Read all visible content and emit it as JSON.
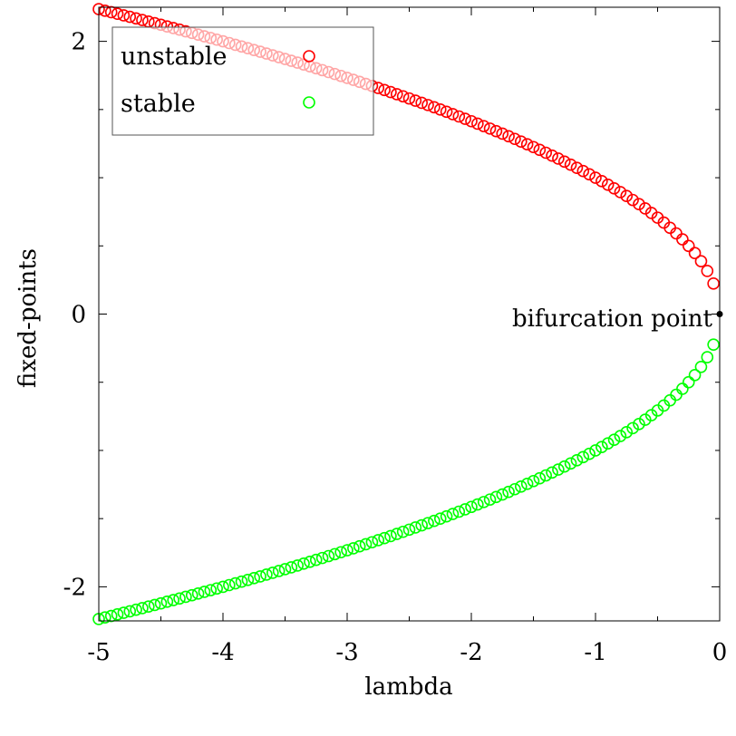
{
  "chart_data": {
    "type": "scatter",
    "title": "",
    "xlabel": "lambda",
    "ylabel": "fixed-points",
    "xlim": [
      -5,
      0
    ],
    "ylim": [
      -2.25,
      2.25
    ],
    "x_ticks": [
      -5,
      -4,
      -3,
      -2,
      -1,
      0
    ],
    "x_tick_labels": [
      "-5",
      "-4",
      "-3",
      "-2",
      "-1",
      "0"
    ],
    "y_ticks": [
      -2,
      0,
      2
    ],
    "y_tick_labels": [
      "-2",
      "0",
      "2"
    ],
    "grid": false,
    "legend": {
      "position": "top-left",
      "entries": [
        {
          "label": "unstable",
          "color": "#ff0000"
        },
        {
          "label": "stable",
          "color": "#00ff00"
        }
      ]
    },
    "series": [
      {
        "name": "unstable",
        "color": "#ff0000",
        "marker": "circle-open",
        "function": "sqrt(-lambda)",
        "x_range": [
          -5,
          -0.05
        ],
        "n_points": 100
      },
      {
        "name": "stable",
        "color": "#00ff00",
        "marker": "circle-open",
        "function": "-sqrt(-lambda)",
        "x_range": [
          -5,
          -0.05
        ],
        "n_points": 100
      }
    ],
    "annotations": [
      {
        "label": "bifurcation point",
        "x": 0,
        "y": 0
      }
    ]
  }
}
